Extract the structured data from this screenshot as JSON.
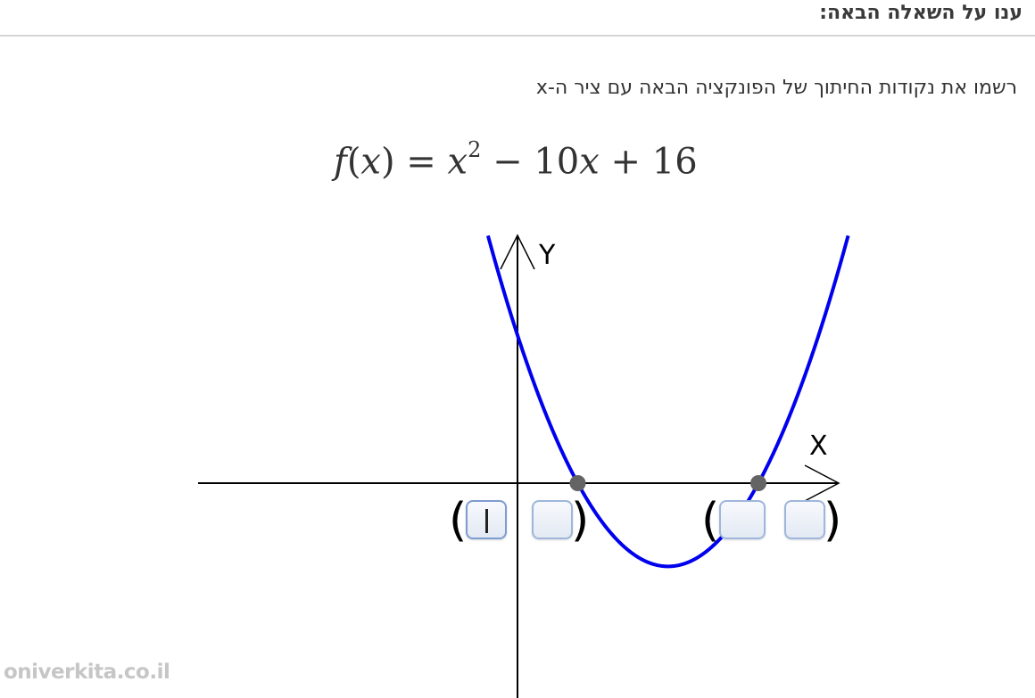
{
  "header": {
    "title": "ענו על השאלה הבאה:"
  },
  "question": {
    "instruction": "רשמו את נקודות החיתוך של הפונקציה הבאה עם ציר ה-x",
    "formula": {
      "f": "f",
      "open": "(",
      "x": "x",
      "close_eq": ") = ",
      "x2": "x",
      "exp": "2",
      "minus": " − 10",
      "x3": "x",
      "plus": " + 16"
    }
  },
  "graph": {
    "function": "x^2 - 10x + 16",
    "x_axis_label": "X",
    "y_axis_label": "Y",
    "curve_color": "#0000ee",
    "point_color": "#646464",
    "intersection_points_x": [
      2,
      8
    ]
  },
  "answers": {
    "point1": {
      "open": "(",
      "close": ")",
      "x_value": "",
      "y_value": ""
    },
    "point2": {
      "open": "(",
      "close": ")",
      "x_value": "",
      "y_value": ""
    }
  },
  "watermark": "oniverkita.co.il",
  "colors": {
    "box_border": "#9fb6dc",
    "text": "#333333"
  }
}
